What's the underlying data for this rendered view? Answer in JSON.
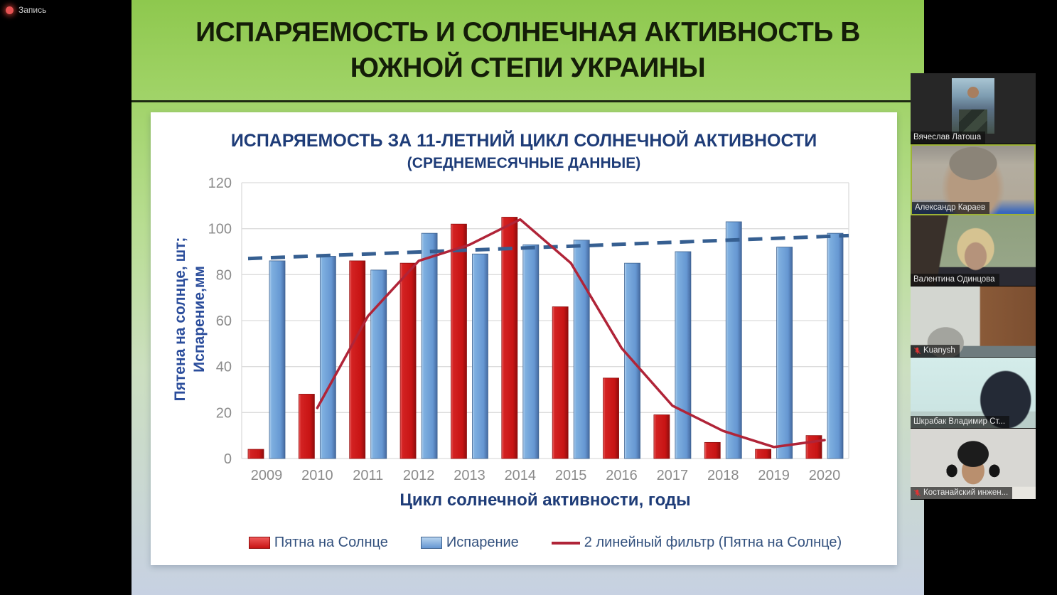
{
  "recording_indicator": {
    "label": "Запись"
  },
  "slide": {
    "title_line1": "ИСПАРЯЕМОСТЬ  И СОЛНЕЧНАЯ АКТИВНОСТЬ В",
    "title_line2": "ЮЖНОЙ СТЕПИ УКРАИНЫ"
  },
  "chart_data": {
    "type": "bar",
    "title_line1": "ИСПАРЯЕМОСТЬ ЗА 11-ЛЕТНИЙ ЦИКЛ СОЛНЕЧНОЙ АКТИВНОСТИ",
    "title_line2": "(СРЕДНЕМЕСЯЧНЫЕ ДАННЫЕ)",
    "ylabel_line1": "Пятена на солнце, шт;",
    "ylabel_line2": "Испарение,мм",
    "xlabel": "Цикл солнечной активности, годы",
    "categories": [
      "2009",
      "2010",
      "2011",
      "2012",
      "2013",
      "2014",
      "2015",
      "2016",
      "2017",
      "2018",
      "2019",
      "2020"
    ],
    "ylim": [
      0,
      120
    ],
    "ytick_step": 20,
    "grid": true,
    "legend_position": "bottom",
    "series": [
      {
        "name": "Пятна на Солнце",
        "type": "bar",
        "color": "#cf1515",
        "values": [
          4,
          28,
          86,
          85,
          102,
          105,
          66,
          35,
          19,
          7,
          4,
          10
        ]
      },
      {
        "name": "Испарение",
        "type": "bar",
        "color": "#6d9ed7",
        "values": [
          86,
          88,
          82,
          98,
          89,
          93,
          95,
          85,
          90,
          103,
          92,
          98
        ]
      },
      {
        "name": "2 линейный фильтр (Пятна на Солнце)",
        "type": "line",
        "color": "#b02438",
        "x_start_index": 1,
        "values": [
          22,
          62,
          86,
          93,
          104,
          85,
          48,
          23,
          12,
          5,
          8
        ]
      }
    ],
    "trend_line": {
      "style": "dashed",
      "color": "#365f91",
      "start": 87,
      "end": 97
    }
  },
  "participants": [
    {
      "name": "Вячеслав Латоша",
      "muted": false,
      "active": false
    },
    {
      "name": "Александр Караев",
      "muted": false,
      "active": true
    },
    {
      "name": "Валентина Одинцова",
      "muted": false,
      "active": false
    },
    {
      "name": "Kuanysh",
      "muted": true,
      "active": false
    },
    {
      "name": "Шкрабак Владимир Ст...",
      "muted": false,
      "active": false
    },
    {
      "name": "Костанайский инжен...",
      "muted": true,
      "active": false
    }
  ]
}
